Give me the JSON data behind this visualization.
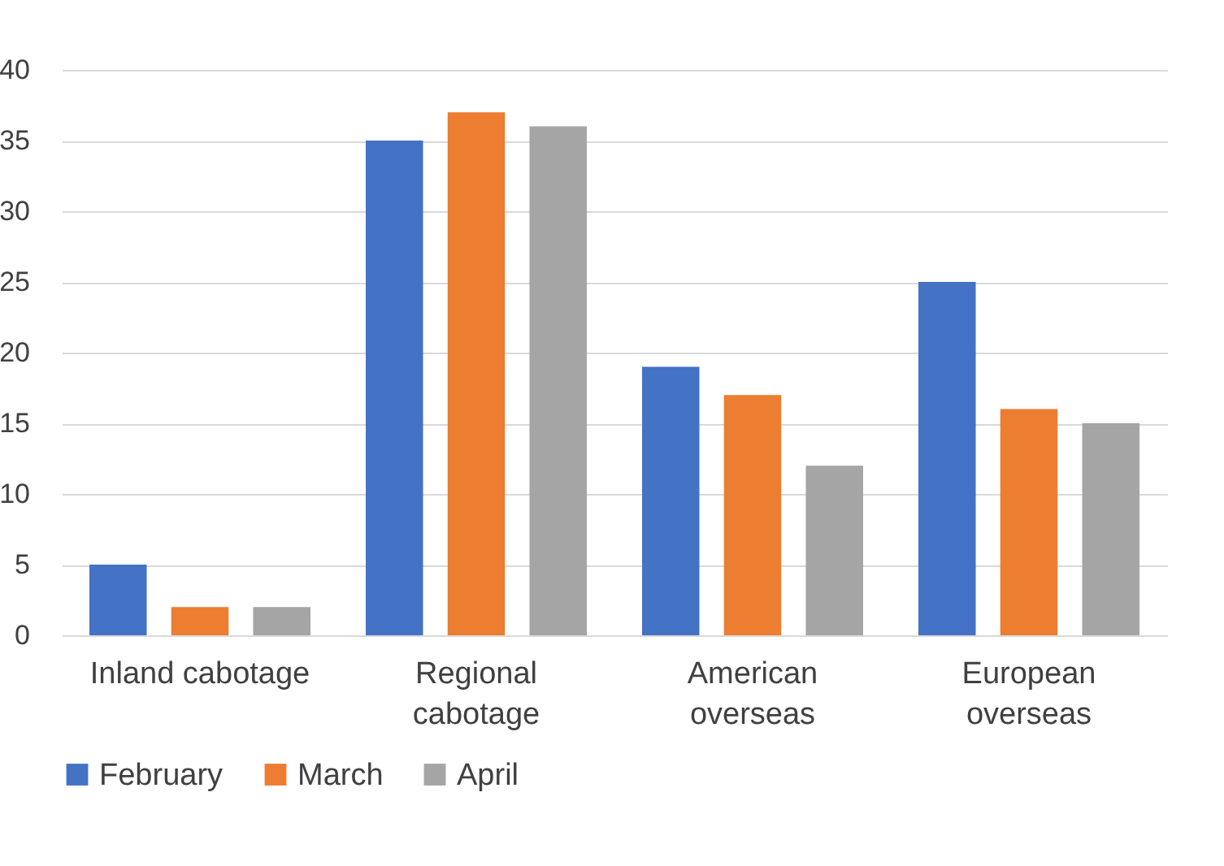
{
  "chart_data": {
    "type": "bar",
    "categories": [
      "Inland cabotage",
      "Regional cabotage",
      "American overseas",
      "European overseas"
    ],
    "series": [
      {
        "name": "February",
        "color": "#4472c4",
        "values": [
          5,
          35,
          19,
          25
        ]
      },
      {
        "name": "March",
        "color": "#ed7d31",
        "values": [
          2,
          37,
          17,
          16
        ]
      },
      {
        "name": "April",
        "color": "#a5a5a5",
        "values": [
          2,
          36,
          12,
          15
        ]
      }
    ],
    "ylim": [
      0,
      40
    ],
    "yticks": [
      0,
      5,
      10,
      15,
      20,
      25,
      30,
      35,
      40
    ],
    "grid": "y",
    "legend": "bottom"
  }
}
